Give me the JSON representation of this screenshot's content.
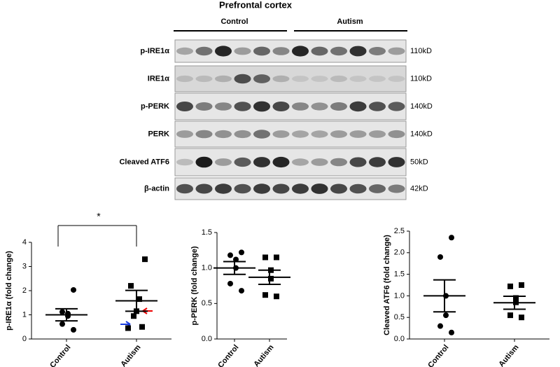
{
  "blot": {
    "title": "Prefrontal cortex",
    "groups": [
      "Control",
      "Autism"
    ],
    "rows": [
      {
        "label": "p-IRE1α",
        "size": "110kD"
      },
      {
        "label": "IRE1α",
        "size": "110kD"
      },
      {
        "label": "p-PERK",
        "size": "140kD"
      },
      {
        "label": "PERK",
        "size": "140kD"
      },
      {
        "label": "Cleaved ATF6",
        "size": "50kD"
      },
      {
        "label": "β-actin",
        "size": "42kD"
      }
    ]
  },
  "chart_data": [
    {
      "type": "dot",
      "y_label": "p-IRE1α (fold change)",
      "categories": [
        "Control",
        "Autism"
      ],
      "markers": [
        "circle",
        "square"
      ],
      "points": [
        [
          2.03,
          1.12,
          1.05,
          0.95,
          0.62,
          0.38
        ],
        [
          3.3,
          2.2,
          1.65,
          1.15,
          0.95,
          0.5,
          0.45
        ]
      ],
      "mean": [
        1.0,
        1.58
      ],
      "sem": [
        0.25,
        0.43
      ],
      "ylim": [
        0,
        4
      ],
      "yticks": [
        0,
        1,
        2,
        3,
        4
      ],
      "annotation": "*"
    },
    {
      "type": "dot",
      "y_label": "p-PERK (fold change)",
      "categories": [
        "Control",
        "Autism"
      ],
      "markers": [
        "circle",
        "square"
      ],
      "points": [
        [
          1.22,
          1.18,
          1.12,
          1.0,
          0.78,
          0.68
        ],
        [
          1.15,
          1.15,
          0.97,
          0.85,
          0.62,
          0.6
        ]
      ],
      "mean": [
        1.0,
        0.87
      ],
      "sem": [
        0.09,
        0.1
      ],
      "ylim": [
        0,
        1.5
      ],
      "yticks": [
        {
          "value": 0,
          "label": "0.0"
        },
        0.5,
        {
          "value": 1,
          "label": "1.0"
        },
        1.5
      ]
    },
    {
      "type": "dot",
      "y_label": "Cleaved ATF6 (fold change)",
      "categories": [
        "Control",
        "Autism"
      ],
      "markers": [
        "circle",
        "square"
      ],
      "points": [
        [
          2.35,
          1.9,
          1.0,
          0.55,
          0.3,
          0.15
        ],
        [
          1.25,
          1.22,
          0.95,
          0.85,
          0.55,
          0.5
        ]
      ],
      "mean": [
        1.0,
        0.84
      ],
      "sem": [
        0.37,
        0.15
      ],
      "ylim": [
        0,
        2.5
      ],
      "yticks": [
        {
          "value": 0,
          "label": "0.0"
        },
        0.5,
        {
          "value": 1,
          "label": "1.0"
        },
        1.5,
        {
          "value": 2,
          "label": "2.0"
        },
        2.5
      ]
    }
  ]
}
